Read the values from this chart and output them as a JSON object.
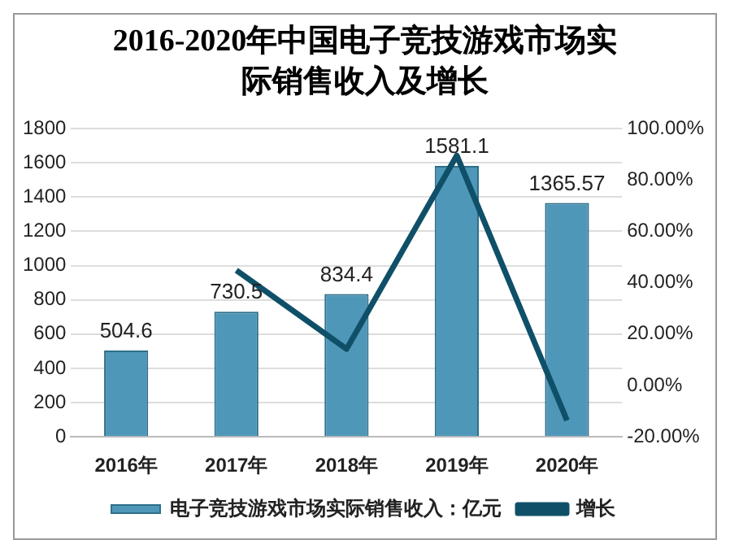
{
  "chart_data": {
    "type": "bar",
    "title": "2016-2020年中国电子竞技游戏市场实际销售收入及增长",
    "categories": [
      "2016年",
      "2017年",
      "2018年",
      "2019年",
      "2020年"
    ],
    "series": [
      {
        "name": "电子竞技游戏市场实际销售收入：亿元",
        "color": "#4f97b8",
        "values": [
          504.6,
          730.5,
          834.4,
          1581.1,
          1365.57
        ],
        "value_labels": [
          "504.6",
          "730.5",
          "834.4",
          "1581.1",
          "1365.57"
        ]
      },
      {
        "name": "增长",
        "type": "line",
        "axis": "y2",
        "color": "#0f5068",
        "values": [
          null,
          44.8,
          14.2,
          89.5,
          -13.6
        ]
      }
    ],
    "ylim": [
      0,
      1800
    ],
    "yticks": [
      0,
      200,
      400,
      600,
      800,
      1000,
      1200,
      1400,
      1600,
      1800
    ],
    "y2lim": [
      -20,
      100
    ],
    "y2ticks": [
      {
        "value": -20,
        "label": "-20.00%"
      },
      {
        "value": 0,
        "label": "0.00%"
      },
      {
        "value": 20,
        "label": "20.00%"
      },
      {
        "value": 40,
        "label": "40.00%"
      },
      {
        "value": 60,
        "label": "60.00%"
      },
      {
        "value": 80,
        "label": "80.00%"
      },
      {
        "value": 100,
        "label": "100.00%"
      }
    ],
    "grid": "y",
    "legend": "bottom",
    "marker": "none",
    "line_style": "solid"
  }
}
